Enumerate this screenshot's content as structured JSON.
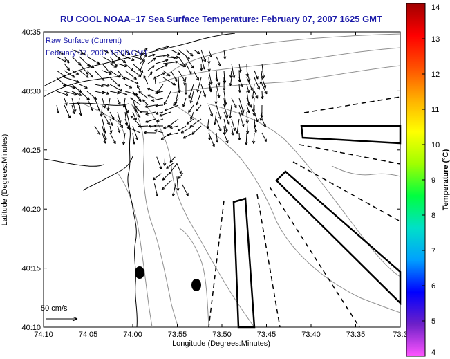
{
  "title": "RU COOL  NOAA−17  Sea Surface Temperature:  February 07, 2007 1625 GMT",
  "legend": {
    "line1": "Raw Surface (Current)",
    "line2": "February 07, 2007 16:00 GMT"
  },
  "scale_label": "50 cm/s",
  "x_axis": {
    "label": "Longitude (Degrees:Minutes)",
    "ticks": [
      "74:10",
      "74:05",
      "74:00",
      "73:55",
      "73:50",
      "73:45",
      "73:40",
      "73:35",
      "73:3"
    ]
  },
  "y_axis": {
    "label": "Latitude (Degrees:Minutes)",
    "ticks": [
      "40:10",
      "40:15",
      "40:20",
      "40:25",
      "40:30",
      "40:35"
    ]
  },
  "colorbar": {
    "label": "Temperature (°C)",
    "ticks": [
      "4",
      "5",
      "6",
      "7",
      "8",
      "9",
      "10",
      "11",
      "12",
      "13",
      "14"
    ],
    "range": [
      4,
      14
    ],
    "colors": [
      "#ff55ff",
      "#6d20c8",
      "#0000ff",
      "#00a0ff",
      "#00e0c8",
      "#00ff40",
      "#a0ff00",
      "#ffff00",
      "#ffb000",
      "#ff5000",
      "#ff0000",
      "#a00000"
    ]
  },
  "colors": {
    "title": "#1a1aa8",
    "coast": "#000000",
    "bathymetry": "#909090",
    "arrows": "#000000"
  }
}
